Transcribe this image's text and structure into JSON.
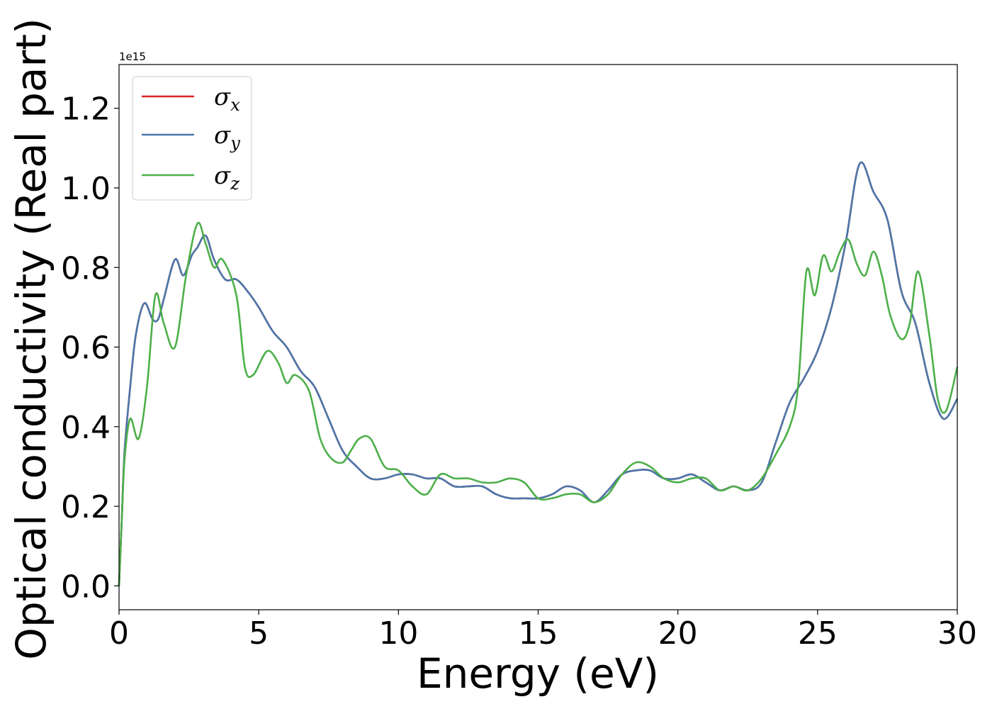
{
  "chart_data": {
    "type": "line",
    "title": "",
    "xlabel": "Energy (eV)",
    "ylabel": "Optical conductivity (Real part)",
    "y_offset_label": "1e15",
    "xlim": [
      0,
      30
    ],
    "ylim": [
      -0.06,
      1.31
    ],
    "xticks": [
      0,
      5,
      10,
      15,
      20,
      25,
      30
    ],
    "xtick_labels": [
      "0",
      "5",
      "10",
      "15",
      "20",
      "25",
      "30"
    ],
    "yticks": [
      0.0,
      0.2,
      0.4,
      0.6,
      0.8,
      1.0,
      1.2
    ],
    "ytick_labels": [
      "0.0",
      "0.2",
      "0.4",
      "0.6",
      "0.8",
      "1.0",
      "1.2"
    ],
    "grid": false,
    "legend_position": "top-left",
    "series": [
      {
        "name": "σx",
        "name_base": "σ",
        "name_sub": "x",
        "color": "#d62728",
        "x": [
          0,
          0.1,
          0.2,
          0.4,
          0.6,
          0.9,
          1.2,
          1.4,
          1.6,
          2.0,
          2.3,
          2.6,
          2.8,
          3.1,
          3.4,
          3.8,
          4.2,
          4.6,
          5.0,
          5.5,
          6.0,
          6.5,
          7.0,
          7.5,
          8.0,
          8.5,
          9.0,
          9.5,
          10.0,
          10.5,
          11.0,
          11.5,
          12.0,
          12.5,
          13.0,
          13.5,
          14.0,
          14.5,
          15.0,
          15.5,
          16.0,
          16.5,
          17.0,
          17.5,
          18.0,
          18.5,
          19.0,
          19.5,
          20.0,
          20.5,
          21.0,
          21.5,
          22.0,
          22.5,
          23.0,
          23.5,
          24.0,
          24.5,
          25.0,
          25.5,
          26.0,
          26.5,
          27.0,
          27.5,
          28.0,
          28.5,
          29.0,
          29.5,
          30.0
        ],
        "y": [
          0.0,
          0.17,
          0.34,
          0.5,
          0.63,
          0.71,
          0.67,
          0.67,
          0.72,
          0.82,
          0.78,
          0.83,
          0.85,
          0.88,
          0.82,
          0.77,
          0.77,
          0.74,
          0.7,
          0.64,
          0.6,
          0.54,
          0.5,
          0.42,
          0.34,
          0.3,
          0.27,
          0.27,
          0.28,
          0.28,
          0.27,
          0.27,
          0.25,
          0.25,
          0.25,
          0.23,
          0.22,
          0.22,
          0.22,
          0.23,
          0.25,
          0.24,
          0.21,
          0.24,
          0.28,
          0.29,
          0.29,
          0.27,
          0.27,
          0.28,
          0.26,
          0.24,
          0.25,
          0.24,
          0.26,
          0.36,
          0.46,
          0.52,
          0.59,
          0.7,
          0.86,
          1.06,
          0.99,
          0.92,
          0.74,
          0.66,
          0.51,
          0.42,
          0.47
        ]
      },
      {
        "name": "σy",
        "name_base": "σ",
        "name_sub": "y",
        "color": "#4a77aa",
        "x": [
          0,
          0.1,
          0.2,
          0.4,
          0.6,
          0.9,
          1.2,
          1.4,
          1.6,
          2.0,
          2.3,
          2.6,
          2.8,
          3.1,
          3.4,
          3.8,
          4.2,
          4.6,
          5.0,
          5.5,
          6.0,
          6.5,
          7.0,
          7.5,
          8.0,
          8.5,
          9.0,
          9.5,
          10.0,
          10.5,
          11.0,
          11.5,
          12.0,
          12.5,
          13.0,
          13.5,
          14.0,
          14.5,
          15.0,
          15.5,
          16.0,
          16.5,
          17.0,
          17.5,
          18.0,
          18.5,
          19.0,
          19.5,
          20.0,
          20.5,
          21.0,
          21.5,
          22.0,
          22.5,
          23.0,
          23.5,
          24.0,
          24.5,
          25.0,
          25.5,
          26.0,
          26.5,
          27.0,
          27.5,
          28.0,
          28.5,
          29.0,
          29.5,
          30.0
        ],
        "y": [
          0.0,
          0.17,
          0.34,
          0.5,
          0.63,
          0.71,
          0.67,
          0.67,
          0.72,
          0.82,
          0.78,
          0.83,
          0.85,
          0.88,
          0.82,
          0.77,
          0.77,
          0.74,
          0.7,
          0.64,
          0.6,
          0.54,
          0.5,
          0.42,
          0.34,
          0.3,
          0.27,
          0.27,
          0.28,
          0.28,
          0.27,
          0.27,
          0.25,
          0.25,
          0.25,
          0.23,
          0.22,
          0.22,
          0.22,
          0.23,
          0.25,
          0.24,
          0.21,
          0.24,
          0.28,
          0.29,
          0.29,
          0.27,
          0.27,
          0.28,
          0.26,
          0.24,
          0.25,
          0.24,
          0.26,
          0.36,
          0.46,
          0.52,
          0.59,
          0.7,
          0.86,
          1.06,
          0.99,
          0.92,
          0.74,
          0.66,
          0.51,
          0.42,
          0.47
        ]
      },
      {
        "name": "σz",
        "name_base": "σ",
        "name_sub": "z",
        "color": "#4daf4a",
        "x": [
          0,
          0.1,
          0.2,
          0.4,
          0.7,
          1.0,
          1.3,
          1.6,
          2.0,
          2.4,
          2.8,
          3.1,
          3.4,
          3.7,
          4.2,
          4.5,
          4.8,
          5.3,
          5.7,
          6.0,
          6.3,
          6.8,
          7.2,
          7.6,
          8.0,
          8.3,
          8.6,
          9.0,
          9.5,
          10.0,
          10.5,
          11.0,
          11.5,
          12.0,
          12.5,
          13.0,
          13.5,
          14.0,
          14.5,
          15.0,
          15.5,
          16.0,
          16.5,
          17.0,
          17.5,
          18.0,
          18.5,
          19.0,
          19.5,
          20.0,
          20.5,
          21.0,
          21.5,
          22.0,
          22.5,
          23.0,
          23.5,
          24.0,
          24.3,
          24.6,
          24.9,
          25.2,
          25.5,
          25.8,
          26.1,
          26.4,
          26.7,
          27.0,
          27.3,
          27.6,
          28.0,
          28.3,
          28.6,
          29.0,
          29.3,
          29.6,
          30.0
        ],
        "y": [
          0.0,
          0.17,
          0.32,
          0.42,
          0.37,
          0.5,
          0.73,
          0.66,
          0.6,
          0.78,
          0.91,
          0.86,
          0.8,
          0.82,
          0.73,
          0.55,
          0.53,
          0.59,
          0.56,
          0.51,
          0.53,
          0.49,
          0.37,
          0.32,
          0.31,
          0.34,
          0.37,
          0.37,
          0.3,
          0.29,
          0.25,
          0.23,
          0.28,
          0.27,
          0.27,
          0.26,
          0.26,
          0.27,
          0.26,
          0.22,
          0.22,
          0.23,
          0.23,
          0.21,
          0.23,
          0.28,
          0.31,
          0.3,
          0.27,
          0.26,
          0.27,
          0.27,
          0.24,
          0.25,
          0.24,
          0.27,
          0.33,
          0.4,
          0.5,
          0.79,
          0.73,
          0.83,
          0.79,
          0.84,
          0.87,
          0.81,
          0.78,
          0.84,
          0.78,
          0.68,
          0.62,
          0.66,
          0.79,
          0.63,
          0.47,
          0.44,
          0.55
        ]
      }
    ]
  }
}
